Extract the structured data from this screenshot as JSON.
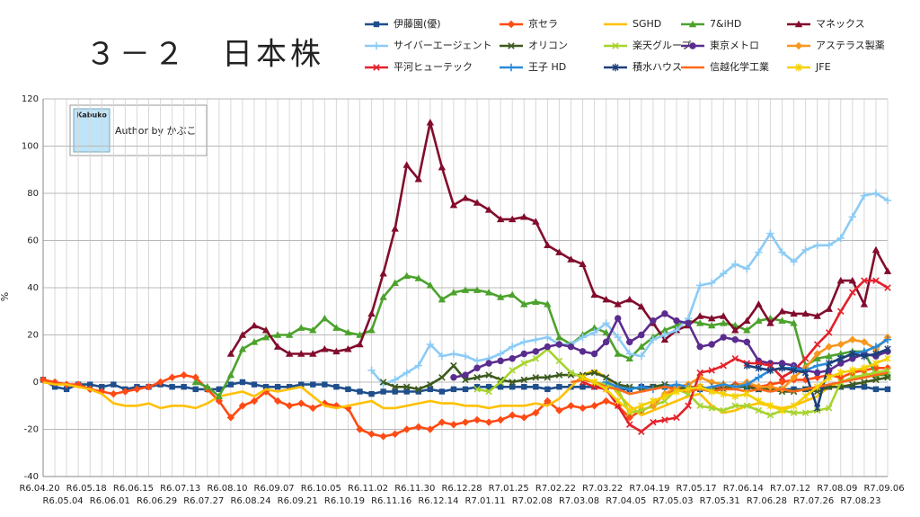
{
  "chart_data": {
    "type": "line",
    "title": "３－２　日本株",
    "y_label": "%",
    "categories": [
      "R6.04.20",
      null,
      "R6.05.04",
      null,
      "R6.05.18",
      null,
      "R6.06.01",
      null,
      "R6.06.15",
      null,
      "R6.06.29",
      null,
      "R6.07.13",
      null,
      "R6.07.27",
      null,
      "R6.08.10",
      null,
      "R6.08.24",
      null,
      "R6.09.07",
      null,
      "R6.09.21",
      null,
      "R6.10.05",
      null,
      "R6.10.19",
      null,
      "R6.11.02",
      null,
      "R6.11.16",
      null,
      "R6.11.30",
      null,
      "R6.12.14",
      null,
      "R6.12.28",
      null,
      "R7.01.11",
      null,
      "R7.01.25",
      null,
      "R7.02.08",
      null,
      "R7.02.22",
      null,
      "R7.03.08",
      null,
      "R7.03.22",
      null,
      "R7.04.05",
      null,
      "R7.04.19",
      null,
      "R7.05.03",
      null,
      "R7.05.17",
      null,
      "R7.05.31",
      null,
      "R7.06.14",
      null,
      "R7.06.28",
      null,
      "R7.07.12",
      null,
      "R7.07.26",
      null,
      "R7.08.09",
      null,
      "R7.08.23",
      null,
      "R7.09.06"
    ],
    "ylim": [
      -40,
      120
    ],
    "yticks": [
      -40,
      -20,
      0,
      20,
      40,
      60,
      80,
      100,
      120
    ],
    "grid": true,
    "series": [
      {
        "name": "伊藤園(優)",
        "color": "#1f4e8c",
        "marker": "square",
        "values": [
          1,
          -2,
          -3,
          -1,
          -1,
          -2,
          -1,
          -3,
          -2,
          -2,
          -1,
          -2,
          -2,
          -3,
          -3,
          -3,
          -1,
          0,
          -1,
          -2,
          -2,
          -2,
          -1,
          -1,
          -1,
          -2,
          -3,
          -4,
          -5,
          -4,
          -4,
          -4,
          -4,
          -3,
          -4,
          -3,
          -3,
          -2,
          -2,
          -2,
          -2,
          -2,
          -2,
          -3,
          -2,
          -2,
          -2,
          -2,
          -2,
          -3,
          -3,
          -2,
          -2,
          -2,
          -3,
          -3,
          -3,
          -3,
          -2,
          -2,
          -2,
          -3,
          -3,
          -3,
          -3,
          -3,
          -3,
          -2,
          -2,
          -2,
          -2,
          -3,
          -3
        ]
      },
      {
        "name": "京セラ",
        "color": "#ff4a14",
        "marker": "diamond",
        "values": [
          1,
          0,
          -1,
          -1,
          -3,
          -4,
          -5,
          -4,
          -3,
          -2,
          0,
          2,
          3,
          2,
          -3,
          -8,
          -15,
          -10,
          -8,
          -4,
          -8,
          -10,
          -9,
          -11,
          -9,
          -10,
          -11,
          -20,
          -22,
          -23,
          -22,
          -20,
          -19,
          -20,
          -17,
          -18,
          -17,
          -16,
          -17,
          -16,
          -14,
          -15,
          -13,
          -8,
          -12,
          -10,
          -11,
          -10,
          -8,
          -10,
          -15,
          -12,
          -10,
          -5,
          -3,
          -2,
          -2,
          -3,
          -2,
          -1,
          -1,
          -2,
          -1,
          0,
          1,
          1,
          2,
          3,
          2,
          4,
          5,
          6,
          6
        ]
      },
      {
        "name": "SGHD",
        "color": "#ffc000",
        "marker": "none",
        "values": [
          0,
          -1,
          -1,
          -2,
          -3,
          -5,
          -9,
          -10,
          -10,
          -9,
          -11,
          -10,
          -10,
          -11,
          -9,
          -6,
          -5,
          -4,
          -6,
          -3,
          -4,
          -3,
          -2,
          -6,
          -10,
          -11,
          -10,
          -9,
          -8,
          -11,
          -11,
          -10,
          -9,
          -8,
          -9,
          -9,
          -10,
          -10,
          -11,
          -10,
          -10,
          -10,
          -9,
          -10,
          -7,
          -2,
          3,
          5,
          2,
          -5,
          -10,
          -14,
          -12,
          -10,
          -8,
          -6,
          -5,
          -10,
          -13,
          -12,
          -10,
          -9,
          -10,
          -11,
          -10,
          -8,
          -6,
          -2,
          0,
          2,
          2,
          3,
          3
        ]
      },
      {
        "name": "7&iHD",
        "color": "#4ca22c",
        "marker": "triangle",
        "values": [
          null,
          null,
          null,
          null,
          null,
          null,
          null,
          null,
          null,
          null,
          null,
          null,
          null,
          0,
          -2,
          -6,
          3,
          14,
          17,
          19,
          20,
          20,
          23,
          22,
          27,
          23,
          21,
          20,
          22,
          36,
          42,
          45,
          44,
          41,
          35,
          38,
          39,
          39,
          38,
          36,
          37,
          33,
          34,
          33,
          19,
          16,
          20,
          23,
          21,
          12,
          10,
          15,
          19,
          22,
          24,
          26,
          25,
          24,
          25,
          24,
          22,
          26,
          27,
          26,
          25,
          7,
          10,
          11,
          12,
          13,
          13,
          3,
          3
        ]
      },
      {
        "name": "マネックス",
        "color": "#820c2c",
        "marker": "triangle",
        "values": [
          null,
          null,
          null,
          null,
          null,
          null,
          null,
          null,
          null,
          null,
          null,
          null,
          null,
          null,
          null,
          null,
          12,
          20,
          24,
          22,
          15,
          12,
          12,
          12,
          14,
          13,
          14,
          16,
          29,
          46,
          65,
          92,
          86,
          110,
          91,
          75,
          78,
          76,
          73,
          69,
          69,
          70,
          68,
          58,
          55,
          52,
          50,
          37,
          35,
          33,
          35,
          32,
          25,
          18,
          22,
          24,
          28,
          27,
          28,
          22,
          26,
          33,
          25,
          30,
          29,
          29,
          28,
          31,
          43,
          43,
          33,
          56,
          47
        ]
      },
      {
        "name": "サイバーエージェント",
        "color": "#8ccbf5",
        "marker": "plus",
        "values": [
          null,
          null,
          null,
          null,
          null,
          null,
          null,
          null,
          null,
          null,
          null,
          null,
          null,
          null,
          null,
          null,
          null,
          null,
          null,
          null,
          null,
          null,
          null,
          null,
          null,
          null,
          null,
          null,
          5,
          -1,
          1,
          4,
          7,
          16,
          11,
          12,
          11,
          9,
          10,
          12,
          15,
          17,
          18,
          19,
          16,
          16,
          19,
          21,
          25,
          19,
          12,
          11,
          18,
          20,
          22,
          27,
          41,
          42,
          46,
          50,
          48,
          55,
          63,
          55,
          51,
          56,
          58,
          58,
          61,
          70,
          79,
          80,
          77
        ]
      },
      {
        "name": "オリコン",
        "color": "#3d5a1e",
        "marker": "x",
        "values": [
          null,
          null,
          null,
          null,
          null,
          null,
          null,
          null,
          null,
          null,
          null,
          null,
          null,
          null,
          null,
          null,
          null,
          null,
          null,
          null,
          null,
          null,
          null,
          null,
          null,
          null,
          null,
          null,
          null,
          0,
          -2,
          -2,
          -3,
          -1,
          2,
          7,
          1,
          2,
          3,
          1,
          0,
          1,
          2,
          2,
          3,
          3,
          3,
          4,
          2,
          -1,
          -2,
          -3,
          -2,
          -1,
          -2,
          -3,
          -2,
          -3,
          -3,
          -2,
          -2,
          -3,
          -3,
          -4,
          -4,
          -3,
          -4,
          -2,
          -2,
          -1,
          0,
          1,
          2
        ]
      },
      {
        "name": "楽天グループ",
        "color": "#a6d42c",
        "marker": "x",
        "values": [
          null,
          null,
          null,
          null,
          null,
          null,
          null,
          null,
          null,
          null,
          null,
          null,
          null,
          null,
          null,
          null,
          null,
          null,
          null,
          null,
          null,
          null,
          null,
          null,
          null,
          null,
          null,
          null,
          null,
          null,
          null,
          null,
          null,
          null,
          null,
          null,
          null,
          -3,
          -4,
          0,
          5,
          8,
          10,
          14,
          9,
          4,
          2,
          0,
          -1,
          -3,
          -13,
          -12,
          -10,
          -8,
          -3,
          -5,
          -10,
          -11,
          -12,
          -10,
          -10,
          -12,
          -14,
          -12,
          -13,
          -13,
          -12,
          -11,
          0,
          2,
          3,
          4,
          5
        ]
      },
      {
        "name": "東京メトロ",
        "color": "#5b2c8f",
        "marker": "circle",
        "values": [
          null,
          null,
          null,
          null,
          null,
          null,
          null,
          null,
          null,
          null,
          null,
          null,
          null,
          null,
          null,
          null,
          null,
          null,
          null,
          null,
          null,
          null,
          null,
          null,
          null,
          null,
          null,
          null,
          null,
          null,
          null,
          null,
          null,
          null,
          null,
          2,
          3,
          6,
          8,
          9,
          10,
          12,
          13,
          15,
          16,
          15,
          13,
          12,
          17,
          27,
          17,
          20,
          26,
          29,
          26,
          25,
          15,
          16,
          19,
          18,
          17,
          9,
          8,
          8,
          7,
          5,
          4,
          5,
          8,
          10,
          12,
          11,
          13
        ]
      },
      {
        "name": "アステラス製薬",
        "color": "#f7961d",
        "marker": "diamond",
        "values": [
          null,
          null,
          null,
          null,
          null,
          null,
          null,
          null,
          null,
          null,
          null,
          null,
          null,
          null,
          null,
          null,
          null,
          null,
          null,
          null,
          null,
          null,
          null,
          null,
          null,
          null,
          null,
          null,
          null,
          null,
          null,
          null,
          null,
          null,
          null,
          null,
          null,
          null,
          null,
          null,
          null,
          null,
          null,
          null,
          null,
          null,
          null,
          null,
          null,
          null,
          null,
          null,
          -10,
          -5,
          -2,
          -1,
          2,
          0,
          -1,
          -2,
          0,
          -2,
          -2,
          -3,
          2,
          6,
          12,
          15,
          16,
          18,
          17,
          14,
          19
        ]
      },
      {
        "name": "平河ヒューテック",
        "color": "#e4202a",
        "marker": "x",
        "values": [
          null,
          null,
          null,
          null,
          null,
          null,
          null,
          null,
          null,
          null,
          null,
          null,
          null,
          null,
          null,
          null,
          null,
          null,
          null,
          null,
          null,
          null,
          null,
          null,
          null,
          null,
          null,
          null,
          null,
          null,
          null,
          null,
          null,
          null,
          null,
          null,
          null,
          null,
          null,
          null,
          null,
          null,
          null,
          null,
          null,
          null,
          0,
          -2,
          -3,
          -10,
          -18,
          -21,
          -17,
          -16,
          -15,
          -10,
          4,
          5,
          7,
          10,
          8,
          8,
          7,
          2,
          5,
          10,
          16,
          21,
          30,
          38,
          43,
          43,
          40
        ]
      },
      {
        "name": "王子 HD",
        "color": "#2a8ad8",
        "marker": "plus",
        "values": [
          null,
          null,
          null,
          null,
          null,
          null,
          null,
          null,
          null,
          null,
          null,
          null,
          null,
          null,
          null,
          null,
          null,
          null,
          null,
          null,
          null,
          null,
          null,
          null,
          null,
          null,
          null,
          null,
          null,
          null,
          null,
          null,
          null,
          null,
          null,
          null,
          null,
          null,
          null,
          null,
          null,
          null,
          null,
          null,
          null,
          null,
          null,
          null,
          0,
          -2,
          -3,
          -2,
          -3,
          -2,
          -1,
          -2,
          -3,
          -2,
          -1,
          -2,
          -1,
          2,
          5,
          6,
          6,
          5,
          7,
          8,
          10,
          12,
          13,
          15,
          18
        ]
      },
      {
        "name": "積水ハウス",
        "color": "#1c3f7a",
        "marker": "star",
        "values": [
          null,
          null,
          null,
          null,
          null,
          null,
          null,
          null,
          null,
          null,
          null,
          null,
          null,
          null,
          null,
          null,
          null,
          null,
          null,
          null,
          null,
          null,
          null,
          null,
          null,
          null,
          null,
          null,
          null,
          null,
          null,
          null,
          null,
          null,
          null,
          null,
          null,
          null,
          null,
          null,
          null,
          null,
          null,
          null,
          null,
          null,
          null,
          null,
          null,
          null,
          null,
          null,
          null,
          null,
          null,
          null,
          null,
          null,
          null,
          null,
          7,
          6,
          5,
          6,
          5,
          4,
          -11,
          8,
          10,
          12,
          11,
          12,
          14
        ]
      },
      {
        "name": "信越化学工業",
        "color": "#ff6a1a",
        "marker": "none",
        "values": [
          null,
          null,
          null,
          null,
          null,
          null,
          null,
          null,
          null,
          null,
          null,
          null,
          null,
          null,
          null,
          null,
          null,
          null,
          null,
          null,
          null,
          null,
          null,
          null,
          null,
          null,
          null,
          null,
          null,
          null,
          null,
          null,
          null,
          null,
          null,
          null,
          null,
          null,
          null,
          null,
          null,
          null,
          null,
          null,
          null,
          0,
          1,
          0,
          -2,
          -3,
          -5,
          -4,
          -3,
          -2,
          -3,
          -4,
          -3,
          -4,
          -3,
          -3,
          -4,
          -3,
          -4,
          -3,
          -4,
          -3,
          -2,
          -1,
          0,
          1,
          2,
          3,
          4
        ]
      },
      {
        "name": "JFE",
        "color": "#f5d000",
        "marker": "star",
        "values": [
          null,
          null,
          null,
          null,
          null,
          null,
          null,
          null,
          null,
          null,
          null,
          null,
          null,
          null,
          null,
          null,
          null,
          null,
          null,
          null,
          null,
          null,
          null,
          null,
          null,
          null,
          null,
          null,
          null,
          null,
          null,
          null,
          null,
          null,
          null,
          null,
          null,
          null,
          null,
          null,
          null,
          null,
          null,
          null,
          null,
          null,
          2,
          0,
          -3,
          -8,
          -12,
          -10,
          -8,
          -6,
          -4,
          -3,
          -2,
          -4,
          -5,
          -6,
          -5,
          -8,
          -10,
          -12,
          -10,
          -6,
          -2,
          2,
          4,
          5,
          6,
          8,
          10
        ]
      }
    ]
  },
  "logo": {
    "badge": "Kabuko",
    "text": "Author by かぶこ"
  }
}
